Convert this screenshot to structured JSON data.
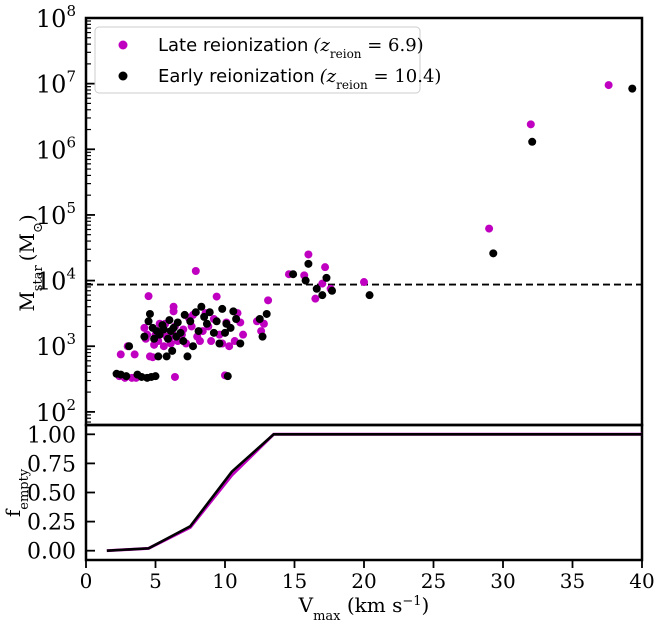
{
  "chart_data": [
    {
      "type": "scatter",
      "panel": "top",
      "xlabel": "",
      "ylabel": "M_star (M_sun)",
      "ylabel_parts": {
        "base": "M",
        "sub": "star",
        "unit_open": "(M",
        "unit_sub": "⊙",
        "unit_close": ")"
      },
      "xlim": [
        0,
        40
      ],
      "ylim_log10": [
        1.8,
        8.0
      ],
      "yscale": "log",
      "y_tick_labels": [
        "10",
        "10",
        "10",
        "10",
        "10",
        "10",
        "10"
      ],
      "y_tick_exponents": [
        "2",
        "3",
        "4",
        "5",
        "6",
        "7",
        "8"
      ],
      "y_tick_values": [
        100,
        1000,
        10000,
        100000,
        1000000,
        10000000,
        100000000
      ],
      "threshold_line": {
        "y": 8700,
        "style": "dashed",
        "color": "#000000"
      },
      "legend": {
        "placement": "top-left",
        "entries": [
          {
            "label": "Late reionization",
            "math": "(z",
            "sub": "reion",
            "value": " = 6.9)",
            "color": "#c000c0"
          },
          {
            "label": "Early reionization",
            "math": "(z",
            "sub": "reion",
            "value": " = 10.4)",
            "color": "#000000"
          }
        ]
      },
      "series": [
        {
          "name": "Late reionization (z_reion = 6.9)",
          "color": "#c000c0",
          "points": [
            [
              2.4,
              350
            ],
            [
              2.8,
              330
            ],
            [
              3.3,
              330
            ],
            [
              3.6,
              330
            ],
            [
              2.5,
              750
            ],
            [
              3.0,
              1000
            ],
            [
              3.5,
              750
            ],
            [
              4.2,
              1900
            ],
            [
              4.3,
              1300
            ],
            [
              4.4,
              1500
            ],
            [
              4.5,
              5800
            ],
            [
              4.6,
              700
            ],
            [
              4.8,
              680
            ],
            [
              4.9,
              1050
            ],
            [
              5.0,
              1500
            ],
            [
              5.2,
              1200
            ],
            [
              5.3,
              2200
            ],
            [
              5.5,
              1700
            ],
            [
              5.6,
              1000
            ],
            [
              5.7,
              2200
            ],
            [
              5.8,
              1400
            ],
            [
              6.0,
              1300
            ],
            [
              6.1,
              1100
            ],
            [
              6.2,
              1600
            ],
            [
              6.3,
              3400
            ],
            [
              6.3,
              4000
            ],
            [
              6.4,
              2000
            ],
            [
              6.4,
              340
            ],
            [
              6.6,
              1200
            ],
            [
              6.9,
              1500
            ],
            [
              7.0,
              1800
            ],
            [
              7.2,
              1100
            ],
            [
              7.4,
              2700
            ],
            [
              7.6,
              2000
            ],
            [
              7.7,
              3000
            ],
            [
              7.9,
              14000
            ],
            [
              8.0,
              1400
            ],
            [
              8.2,
              1200
            ],
            [
              8.4,
              1700
            ],
            [
              8.6,
              3200
            ],
            [
              8.8,
              2000
            ],
            [
              9.0,
              1200
            ],
            [
              9.2,
              2600
            ],
            [
              9.4,
              5700
            ],
            [
              9.6,
              1500
            ],
            [
              9.8,
              1100
            ],
            [
              10.0,
              360
            ],
            [
              10.1,
              2300
            ],
            [
              10.3,
              1000
            ],
            [
              10.7,
              1200
            ],
            [
              10.9,
              3200
            ],
            [
              11.1,
              2300
            ],
            [
              11.3,
              1500
            ],
            [
              12.3,
              2400
            ],
            [
              12.6,
              1700
            ],
            [
              12.8,
              2200
            ],
            [
              13.1,
              5000
            ],
            [
              14.6,
              12500
            ],
            [
              15.7,
              12000
            ],
            [
              16.0,
              25000
            ],
            [
              16.5,
              5300
            ],
            [
              17.0,
              9000
            ],
            [
              17.2,
              16000
            ],
            [
              17.6,
              7500
            ],
            [
              20.0,
              9500
            ],
            [
              29.0,
              62000
            ],
            [
              32.0,
              2400000
            ],
            [
              37.6,
              9500000
            ]
          ]
        },
        {
          "name": "Early reionization (z_reion = 10.4)",
          "color": "#000000",
          "points": [
            [
              2.2,
              380
            ],
            [
              2.5,
              370
            ],
            [
              2.9,
              350
            ],
            [
              3.1,
              1000
            ],
            [
              3.7,
              370
            ],
            [
              4.0,
              340
            ],
            [
              4.2,
              1400
            ],
            [
              4.4,
              330
            ],
            [
              4.5,
              2400
            ],
            [
              4.6,
              3100
            ],
            [
              4.7,
              340
            ],
            [
              4.8,
              1900
            ],
            [
              4.9,
              1300
            ],
            [
              5.0,
              350
            ],
            [
              5.1,
              1700
            ],
            [
              5.2,
              700
            ],
            [
              5.3,
              1500
            ],
            [
              5.5,
              2100
            ],
            [
              5.6,
              1800
            ],
            [
              5.8,
              700
            ],
            [
              5.9,
              1300
            ],
            [
              6.0,
              2500
            ],
            [
              6.1,
              1700
            ],
            [
              6.2,
              850
            ],
            [
              6.3,
              1900
            ],
            [
              6.5,
              1400
            ],
            [
              6.6,
              2300
            ],
            [
              6.8,
              1600
            ],
            [
              7.0,
              1200
            ],
            [
              7.1,
              3000
            ],
            [
              7.3,
              700
            ],
            [
              7.5,
              2400
            ],
            [
              7.7,
              1000
            ],
            [
              7.9,
              3300
            ],
            [
              8.1,
              1700
            ],
            [
              8.3,
              4000
            ],
            [
              8.5,
              2800
            ],
            [
              8.7,
              2200
            ],
            [
              8.9,
              3300
            ],
            [
              9.2,
              1600
            ],
            [
              9.4,
              2400
            ],
            [
              9.6,
              1100
            ],
            [
              9.8,
              3700
            ],
            [
              10.0,
              1600
            ],
            [
              10.1,
              2200
            ],
            [
              10.2,
              350
            ],
            [
              10.4,
              1900
            ],
            [
              10.6,
              3400
            ],
            [
              10.8,
              2600
            ],
            [
              11.1,
              1100
            ],
            [
              12.5,
              2600
            ],
            [
              12.7,
              1400
            ],
            [
              13.0,
              3100
            ],
            [
              14.9,
              12500
            ],
            [
              15.8,
              10000
            ],
            [
              16.0,
              18000
            ],
            [
              16.6,
              7500
            ],
            [
              17.0,
              6000
            ],
            [
              17.3,
              11000
            ],
            [
              17.7,
              7000
            ],
            [
              20.4,
              6000
            ],
            [
              29.3,
              26000
            ],
            [
              32.1,
              1300000
            ],
            [
              39.3,
              8400000
            ]
          ]
        }
      ]
    },
    {
      "type": "line",
      "panel": "bottom",
      "xlabel": "V_max (km s^-1)",
      "xlabel_parts": {
        "base": "V",
        "sub": "max",
        "unit": " (km s",
        "sup": "−1",
        "close": ")"
      },
      "ylabel": "f_empty",
      "ylabel_parts": {
        "base": "f",
        "sub": "empty"
      },
      "xlim": [
        0,
        40
      ],
      "ylim": [
        -0.08,
        1.08
      ],
      "x_tick_values": [
        0,
        5,
        10,
        15,
        20,
        25,
        30,
        35,
        40
      ],
      "x_tick_labels": [
        "0",
        "5",
        "10",
        "15",
        "20",
        "25",
        "30",
        "35",
        "40"
      ],
      "y_tick_values": [
        0.0,
        0.25,
        0.5,
        0.75,
        1.0
      ],
      "y_tick_labels": [
        "0.00",
        "0.25",
        "0.50",
        "0.75",
        "1.00"
      ],
      "series": [
        {
          "name": "Late reionization",
          "color": "#c000c0",
          "x": [
            1.5,
            4.5,
            7.5,
            10.5,
            13.5,
            40
          ],
          "y": [
            0.0,
            0.02,
            0.2,
            0.65,
            1.0,
            1.0
          ]
        },
        {
          "name": "Early reionization",
          "color": "#000000",
          "x": [
            1.5,
            4.5,
            7.5,
            10.5,
            13.5,
            40
          ],
          "y": [
            0.0,
            0.02,
            0.21,
            0.68,
            1.0,
            1.0
          ]
        }
      ]
    }
  ]
}
